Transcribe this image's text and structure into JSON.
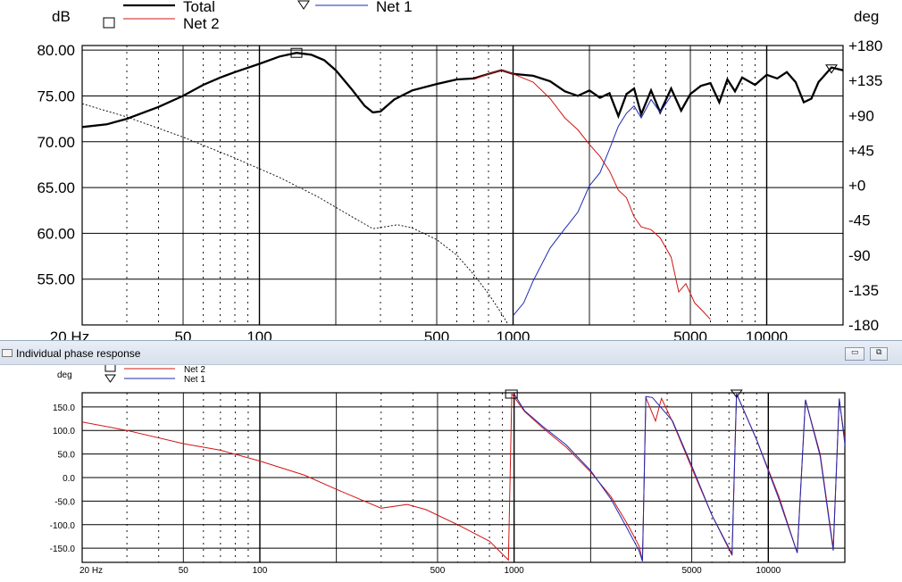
{
  "window": {
    "title": "Individual phase response",
    "minimize_symbol": "▭",
    "restore_symbol": "⧉"
  },
  "chart_data": [
    {
      "type": "line",
      "title": "",
      "left_axis_unit": "dB",
      "right_axis_unit": "deg",
      "x_scale": "log",
      "xlim": [
        20,
        20000
      ],
      "ylim_left": [
        50,
        80
      ],
      "ylim_right": [
        -180,
        180
      ],
      "x_tick_labels": [
        "20 Hz",
        "50",
        "100",
        "500",
        "1000",
        "5000",
        "10000"
      ],
      "y_left_tick_labels": [
        "80.00",
        "75.00",
        "70.00",
        "65.00",
        "60.00",
        "55.00"
      ],
      "y_right_tick_labels": [
        "+180",
        "+135",
        "+90",
        "+45",
        "+0",
        "-45",
        "-90",
        "-135",
        "-180"
      ],
      "grid": true,
      "legend": [
        {
          "name": "Total",
          "marker": "none"
        },
        {
          "name": "Net 2",
          "marker": "square"
        },
        {
          "name": "Net 1",
          "marker": "triangle"
        }
      ],
      "series": [
        {
          "name": "Total",
          "axis": "left",
          "style": "thick black",
          "points": [
            [
              20,
              71.6
            ],
            [
              25,
              71.9
            ],
            [
              30,
              72.5
            ],
            [
              40,
              73.8
            ],
            [
              50,
              75.0
            ],
            [
              60,
              76.2
            ],
            [
              70,
              77.0
            ],
            [
              80,
              77.6
            ],
            [
              100,
              78.5
            ],
            [
              120,
              79.3
            ],
            [
              140,
              79.7
            ],
            [
              160,
              79.5
            ],
            [
              180,
              78.9
            ],
            [
              200,
              77.8
            ],
            [
              230,
              75.8
            ],
            [
              260,
              73.9
            ],
            [
              280,
              73.2
            ],
            [
              300,
              73.3
            ],
            [
              340,
              74.6
            ],
            [
              400,
              75.6
            ],
            [
              500,
              76.3
            ],
            [
              600,
              76.8
            ],
            [
              700,
              76.9
            ],
            [
              800,
              77.4
            ],
            [
              900,
              77.8
            ],
            [
              1000,
              77.4
            ],
            [
              1200,
              77.2
            ],
            [
              1400,
              76.6
            ],
            [
              1600,
              75.5
            ],
            [
              1800,
              75.0
            ],
            [
              2000,
              75.6
            ],
            [
              2200,
              74.8
            ],
            [
              2400,
              75.3
            ],
            [
              2600,
              72.8
            ],
            [
              2800,
              75.2
            ],
            [
              3000,
              75.8
            ],
            [
              3200,
              73.0
            ],
            [
              3500,
              75.6
            ],
            [
              3800,
              73.2
            ],
            [
              4200,
              75.8
            ],
            [
              4600,
              73.4
            ],
            [
              5000,
              75.2
            ],
            [
              5500,
              76.1
            ],
            [
              6000,
              76.4
            ],
            [
              6500,
              74.3
            ],
            [
              7000,
              76.8
            ],
            [
              7500,
              75.5
            ],
            [
              8000,
              77.0
            ],
            [
              9000,
              76.2
            ],
            [
              10000,
              77.3
            ],
            [
              11000,
              76.9
            ],
            [
              12000,
              77.6
            ],
            [
              13000,
              76.5
            ],
            [
              14000,
              74.3
            ],
            [
              15000,
              74.7
            ],
            [
              16000,
              76.5
            ],
            [
              18000,
              78.1
            ],
            [
              20000,
              77.8
            ]
          ]
        },
        {
          "name": "Net 2",
          "axis": "left",
          "style": "red",
          "points": [
            [
              700,
              76.8
            ],
            [
              800,
              77.4
            ],
            [
              900,
              77.8
            ],
            [
              1000,
              77.4
            ],
            [
              1200,
              76.5
            ],
            [
              1400,
              74.7
            ],
            [
              1600,
              72.6
            ],
            [
              1800,
              71.3
            ],
            [
              2000,
              69.7
            ],
            [
              2200,
              68.4
            ],
            [
              2400,
              66.8
            ],
            [
              2600,
              64.7
            ],
            [
              2800,
              63.9
            ],
            [
              3000,
              61.8
            ],
            [
              3200,
              60.7
            ],
            [
              3500,
              60.4
            ],
            [
              3800,
              59.5
            ],
            [
              4200,
              57.4
            ],
            [
              4500,
              53.6
            ],
            [
              4800,
              54.5
            ],
            [
              5200,
              52.4
            ],
            [
              5600,
              51.5
            ],
            [
              6000,
              50.6
            ]
          ]
        },
        {
          "name": "Net 1",
          "axis": "left",
          "style": "blue",
          "points": [
            [
              1000,
              51.0
            ],
            [
              1100,
              52.4
            ],
            [
              1200,
              54.8
            ],
            [
              1400,
              58.4
            ],
            [
              1600,
              60.5
            ],
            [
              1800,
              62.3
            ],
            [
              2000,
              65.2
            ],
            [
              2200,
              66.6
            ],
            [
              2400,
              69.2
            ],
            [
              2600,
              71.7
            ],
            [
              2800,
              73.1
            ],
            [
              3000,
              73.9
            ],
            [
              3200,
              72.6
            ],
            [
              3500,
              74.6
            ],
            [
              3800,
              73.2
            ],
            [
              4200,
              75.0
            ]
          ]
        },
        {
          "name": "Total phase",
          "axis": "right",
          "style": "dotted black",
          "points": [
            [
              20,
              105
            ],
            [
              30,
              88
            ],
            [
              50,
              62
            ],
            [
              80,
              35
            ],
            [
              120,
              10
            ],
            [
              170,
              -15
            ],
            [
              230,
              -40
            ],
            [
              280,
              -56
            ],
            [
              350,
              -51
            ],
            [
              400,
              -55
            ],
            [
              500,
              -70
            ],
            [
              600,
              -90
            ],
            [
              700,
              -115
            ],
            [
              800,
              -140
            ],
            [
              900,
              -165
            ],
            [
              950,
              -178
            ]
          ]
        }
      ]
    },
    {
      "type": "line",
      "title": "",
      "left_axis_unit": "deg",
      "x_scale": "log",
      "xlim": [
        20,
        20000
      ],
      "ylim": [
        -180,
        180
      ],
      "x_tick_labels": [
        "20 Hz",
        "50",
        "100",
        "500",
        "1000",
        "5000",
        "10000"
      ],
      "y_tick_labels": [
        "150.0",
        "100.0",
        "50.0",
        "0.0",
        "-50.0",
        "-100.0",
        "-150.0"
      ],
      "grid": true,
      "legend": [
        {
          "name": "Net 2",
          "marker": "square"
        },
        {
          "name": "Net 1",
          "marker": "triangle"
        }
      ],
      "series": [
        {
          "name": "Net 2",
          "style": "red",
          "points": [
            [
              20,
              118
            ],
            [
              30,
              100
            ],
            [
              50,
              72
            ],
            [
              70,
              58
            ],
            [
              100,
              35
            ],
            [
              150,
              5
            ],
            [
              200,
              -25
            ],
            [
              300,
              -65
            ],
            [
              380,
              -57
            ],
            [
              450,
              -68
            ],
            [
              600,
              -100
            ],
            [
              800,
              -135
            ],
            [
              950,
              -175
            ],
            [
              980,
              178
            ],
            [
              1100,
              140
            ],
            [
              1300,
              105
            ],
            [
              1600,
              65
            ],
            [
              2000,
              12
            ],
            [
              2400,
              -40
            ],
            [
              2800,
              -100
            ],
            [
              3100,
              -145
            ],
            [
              3200,
              -175
            ],
            [
              3300,
              170
            ],
            [
              3600,
              120
            ],
            [
              3800,
              168
            ],
            [
              4200,
              118
            ],
            [
              5000,
              20
            ],
            [
              6000,
              -80
            ],
            [
              7200,
              -165
            ],
            [
              7500,
              178
            ],
            [
              9000,
              80
            ],
            [
              11000,
              -40
            ],
            [
              13000,
              -160
            ],
            [
              14000,
              165
            ],
            [
              16000,
              50
            ],
            [
              18000,
              -150
            ],
            [
              19000,
              165
            ],
            [
              20000,
              80
            ]
          ]
        },
        {
          "name": "Net 1",
          "style": "blue",
          "points": [
            [
              1000,
              178
            ],
            [
              1100,
              142
            ],
            [
              1300,
              108
            ],
            [
              1600,
              70
            ],
            [
              2000,
              15
            ],
            [
              2400,
              -45
            ],
            [
              2800,
              -110
            ],
            [
              3100,
              -155
            ],
            [
              3200,
              -178
            ],
            [
              3300,
              172
            ],
            [
              3500,
              170
            ],
            [
              4200,
              120
            ],
            [
              5000,
              25
            ],
            [
              6000,
              -80
            ],
            [
              7200,
              -162
            ],
            [
              7500,
              178
            ],
            [
              9000,
              80
            ],
            [
              11000,
              -45
            ],
            [
              13000,
              -160
            ],
            [
              14000,
              165
            ],
            [
              16000,
              45
            ],
            [
              18000,
              -155
            ],
            [
              19000,
              168
            ],
            [
              22000,
              -110
            ]
          ]
        }
      ]
    }
  ]
}
